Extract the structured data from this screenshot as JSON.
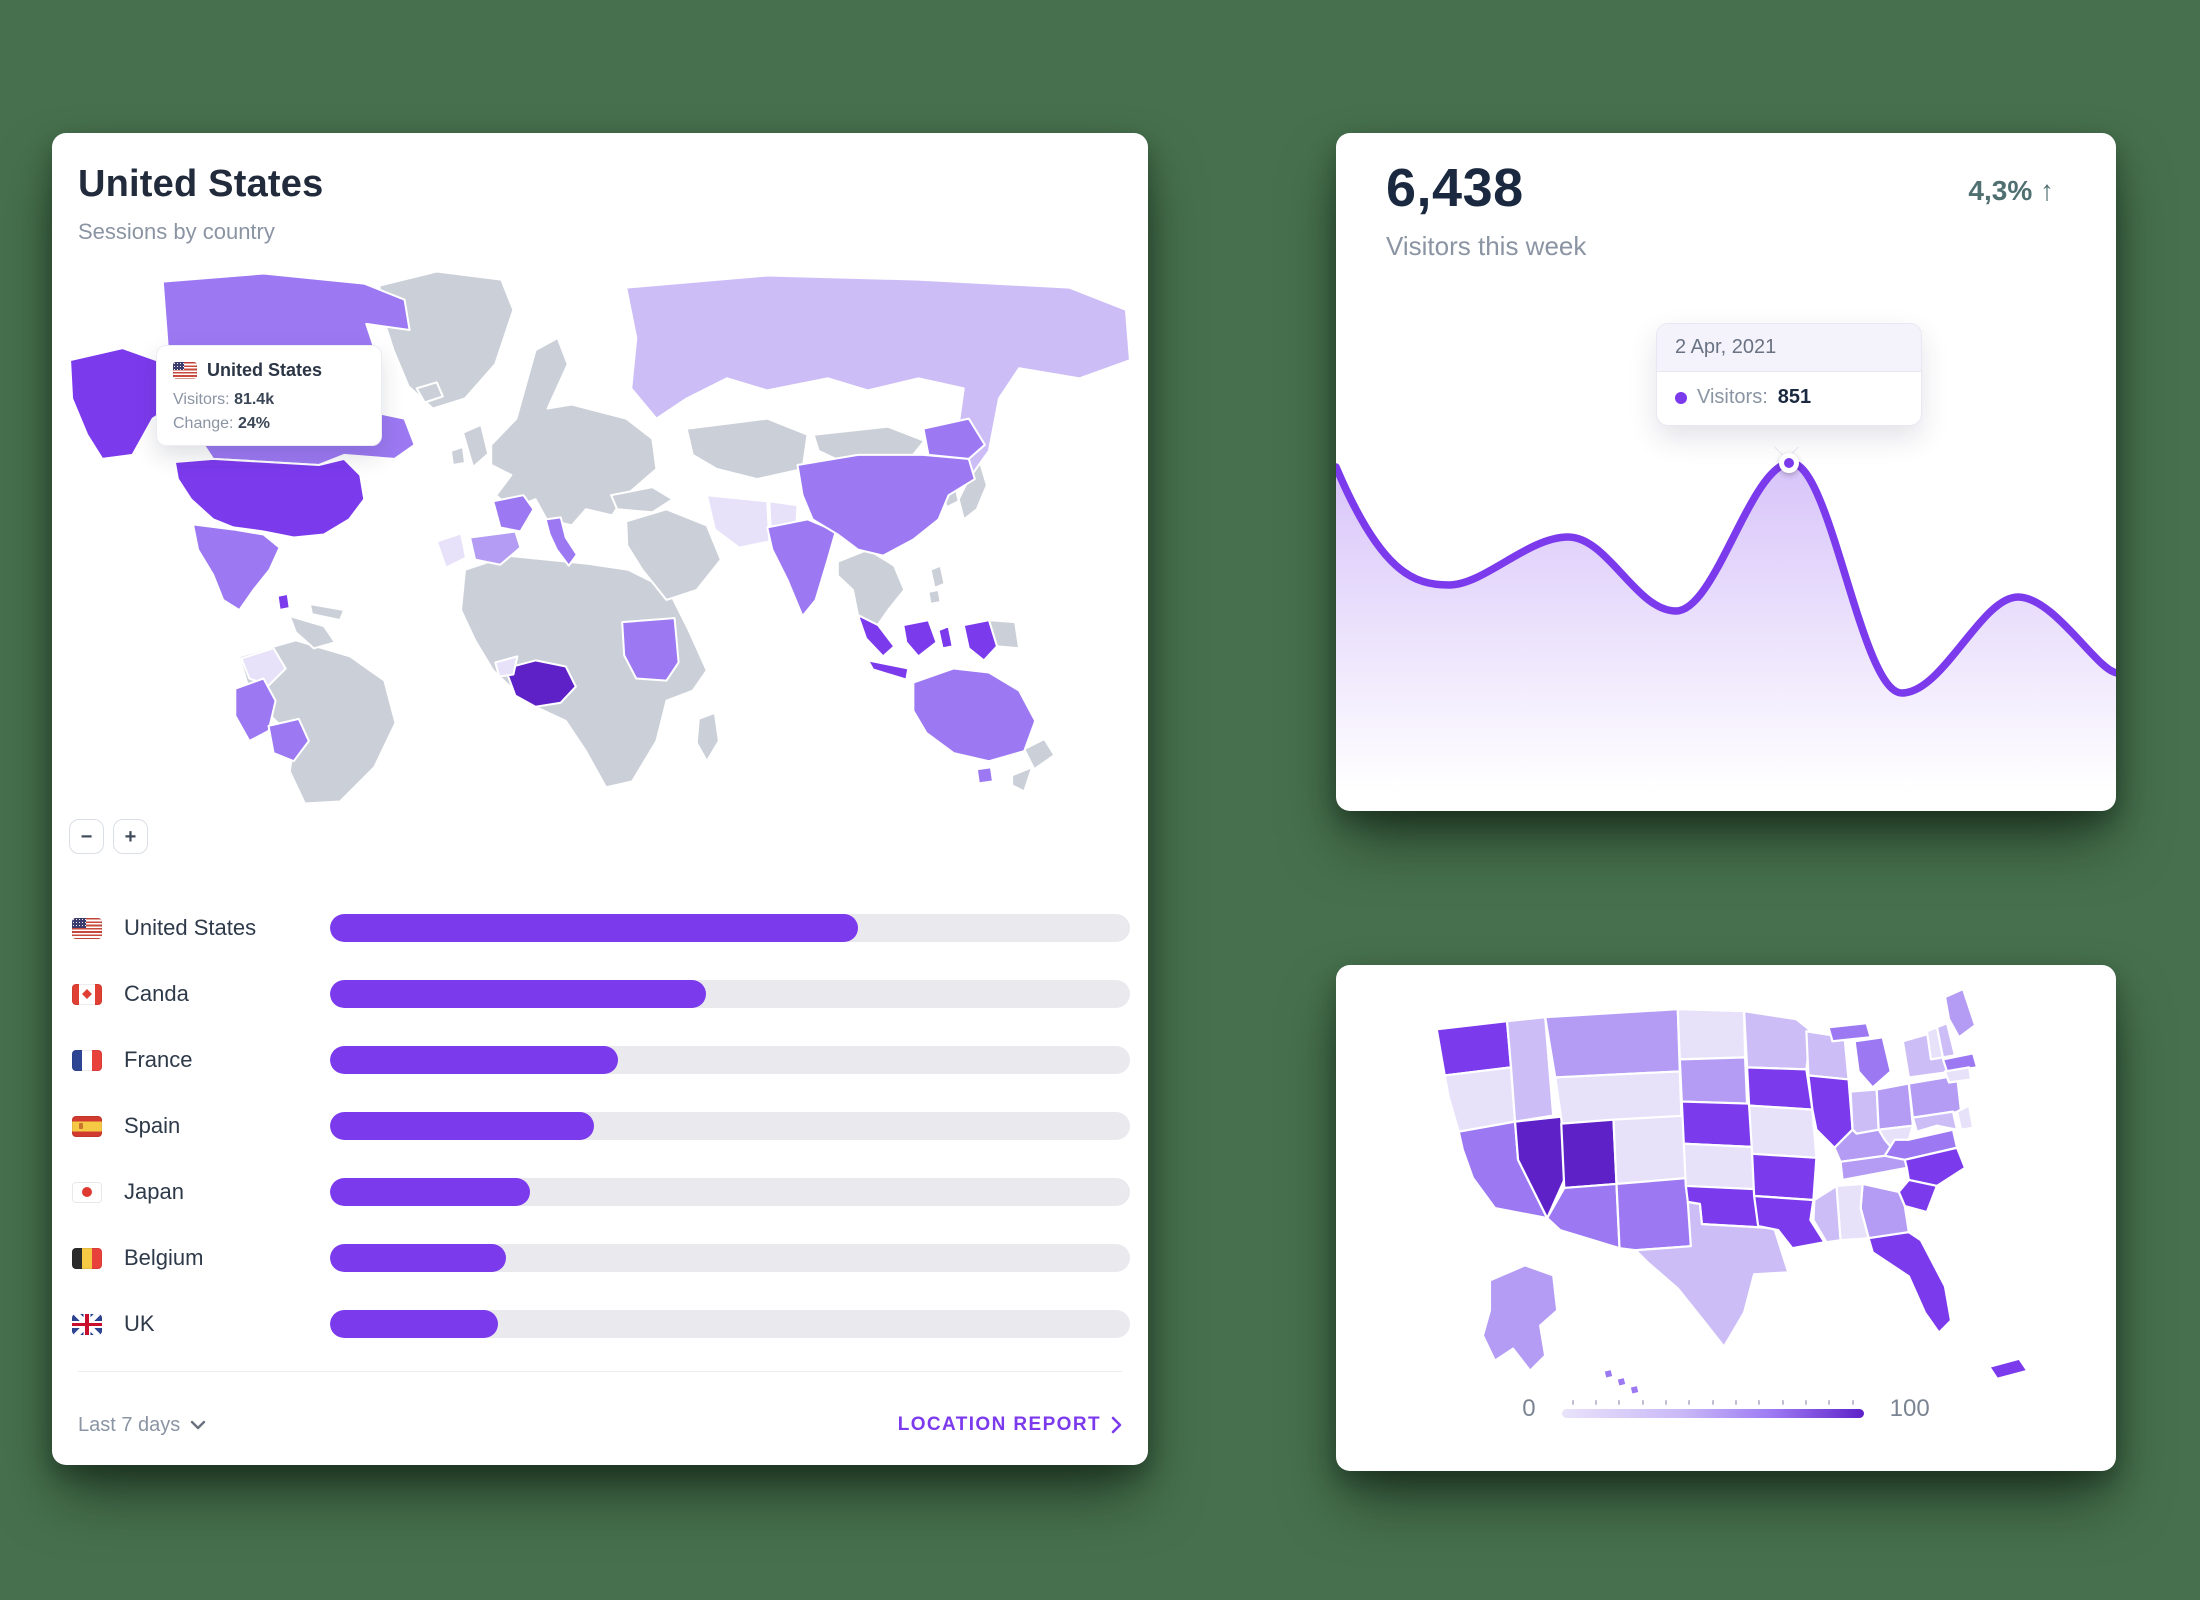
{
  "theme": {
    "background": "#47714E",
    "accent_purple": "#7C3AED",
    "trend_color": "#4F6F71",
    "bar_track": "#E9E9EE",
    "choropleth": {
      "0": "#CBD0D8",
      "1": "#E7E1F9",
      "2": "#CDBDF7",
      "3": "#B49CF5",
      "4": "#9C79F3",
      "5": "#7C3AED",
      "6": "#5E21C8"
    }
  },
  "world_card": {
    "title": "United States",
    "subtitle": "Sessions by country",
    "map_tooltip": {
      "country": "United States",
      "visitors_label": "Visitors:",
      "visitors_value": "81.4k",
      "change_label": "Change:",
      "change_value": "24%"
    },
    "zoom_out_label": "−",
    "zoom_in_label": "+",
    "countries": [
      {
        "name": "United States",
        "flag": "us",
        "value_pct": 66
      },
      {
        "name": "Canda",
        "flag": "ca",
        "value_pct": 47
      },
      {
        "name": "France",
        "flag": "fr",
        "value_pct": 36
      },
      {
        "name": "Spain",
        "flag": "es",
        "value_pct": 33
      },
      {
        "name": "Japan",
        "flag": "jp",
        "value_pct": 25
      },
      {
        "name": "Belgium",
        "flag": "be",
        "value_pct": 22
      },
      {
        "name": "UK",
        "flag": "uk",
        "value_pct": 21
      }
    ],
    "footer": {
      "range_label": "Last 7 days",
      "report_label": "LOCATION REPORT"
    }
  },
  "visitors_card": {
    "value": "6,438",
    "label": "Visitors this week",
    "change": "4,3%",
    "trend_arrow": "↑",
    "tooltip": {
      "date": "2 Apr, 2021",
      "series_label": "Visitors:",
      "series_value": "851"
    }
  },
  "us_map_card": {
    "legend_min": "0",
    "legend_max": "100"
  }
}
